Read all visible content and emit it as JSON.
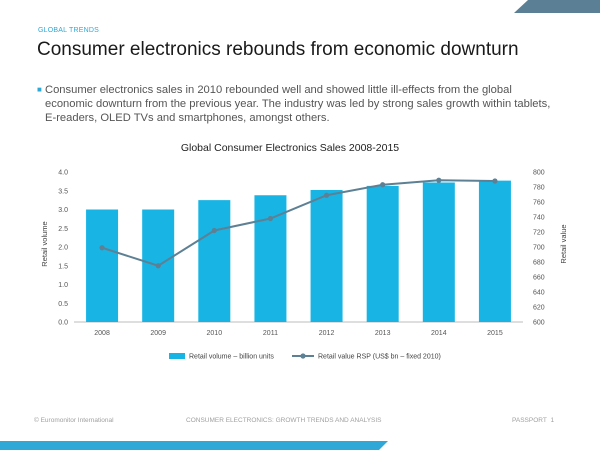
{
  "slide": {
    "section_label": "GLOBAL TRENDS",
    "title": "Consumer electronics rebounds from economic downturn",
    "bullet": "Consumer electronics sales in 2010 rebounded well and showed little ill-effects from the global economic downturn from the previous year. The industry was led by strong sales growth within tablets, E-readers, OLED TVs and smartphones, amongst others."
  },
  "footer": {
    "left": "© Euromonitor International",
    "center": "CONSUMER ELECTRONICS: GROWTH TRENDS AND ANALYSIS",
    "right": "PASSPORT",
    "page": "1"
  },
  "colors": {
    "bar": "#18b4e4",
    "line": "#5e8094",
    "accent_corner": "#5b7f95",
    "accent_bar": "#2fa8d8"
  },
  "chart_data": {
    "type": "bar",
    "title": "Global Consumer Electronics Sales 2008-2015",
    "categories": [
      "2008",
      "2009",
      "2010",
      "2011",
      "2012",
      "2013",
      "2014",
      "2015"
    ],
    "ylabel": "Retail volume",
    "y2label": "Retail value",
    "ylim": [
      0,
      4.0
    ],
    "y2lim": [
      600,
      800
    ],
    "yticks": [
      "0.0",
      "0.5",
      "1.0",
      "1.5",
      "2.0",
      "2.5",
      "3.0",
      "3.5",
      "4.0"
    ],
    "y2ticks": [
      "600",
      "620",
      "640",
      "660",
      "680",
      "700",
      "720",
      "740",
      "760",
      "780",
      "800"
    ],
    "grid": false,
    "legend_position": "bottom",
    "series": [
      {
        "name": "Retail volume – billion units",
        "type": "bar",
        "axis": "left",
        "values": [
          3.0,
          3.0,
          3.25,
          3.38,
          3.52,
          3.63,
          3.72,
          3.77
        ]
      },
      {
        "name": "Retail value RSP (US$ bn – fixed 2010)",
        "type": "line",
        "axis": "right",
        "values": [
          699,
          675,
          722,
          738,
          769,
          783,
          789,
          788
        ]
      }
    ]
  }
}
